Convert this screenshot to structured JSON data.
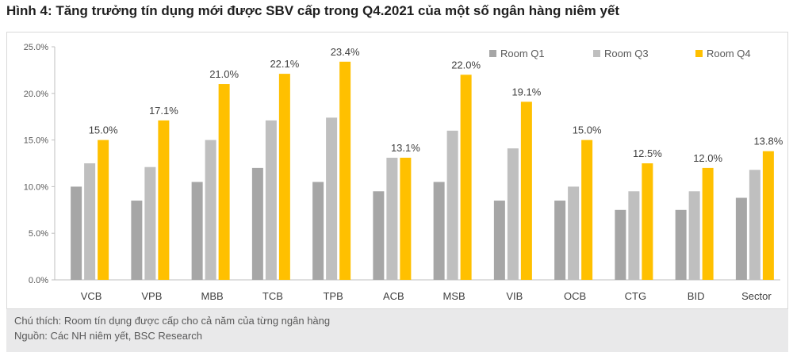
{
  "figure_title": "Hình 4: Tăng trưởng tín dụng mới được SBV cấp trong Q4.2021 của một số ngân hàng niêm yết",
  "footnote": "Chú thích: Room tín dụng được cấp cho cả năm của từng ngân hàng",
  "source": "Nguồn: Các NH niêm yết, BSC Research",
  "colors": {
    "q1": "#a6a6a6",
    "q3": "#bfbfbf",
    "q4": "#ffc000",
    "footer_bg": "#e9e9ea"
  },
  "chart_data": {
    "type": "bar",
    "title": "",
    "xlabel": "",
    "ylabel": "",
    "categories": [
      "VCB",
      "VPB",
      "MBB",
      "TCB",
      "TPB",
      "ACB",
      "MSB",
      "VIB",
      "OCB",
      "CTG",
      "BID",
      "Sector"
    ],
    "series": [
      {
        "name": "Room Q1",
        "values": [
          10.0,
          8.5,
          10.5,
          12.0,
          10.5,
          9.5,
          10.5,
          8.5,
          8.5,
          7.5,
          7.5,
          8.8
        ]
      },
      {
        "name": "Room Q3",
        "values": [
          12.5,
          12.1,
          15.0,
          17.1,
          17.4,
          13.1,
          16.0,
          14.1,
          10.0,
          9.5,
          9.5,
          11.8
        ]
      },
      {
        "name": "Room Q4",
        "values": [
          15.0,
          17.1,
          21.0,
          22.1,
          23.4,
          13.1,
          22.0,
          19.1,
          15.0,
          12.5,
          12.0,
          13.8
        ]
      }
    ],
    "data_labels_series": "Room Q4",
    "data_labels": [
      "15.0%",
      "17.1%",
      "21.0%",
      "22.1%",
      "23.4%",
      "13.1%",
      "22.0%",
      "19.1%",
      "15.0%",
      "12.5%",
      "12.0%",
      "13.8%"
    ],
    "ylim": [
      0,
      25
    ],
    "y_ticks": [
      0,
      5,
      10,
      15,
      20,
      25
    ],
    "y_tick_labels": [
      "0.0%",
      "5.0%",
      "10.0%",
      "15.0%",
      "20.0%",
      "25.0%"
    ],
    "grid": false,
    "legend_position": "top-right"
  }
}
